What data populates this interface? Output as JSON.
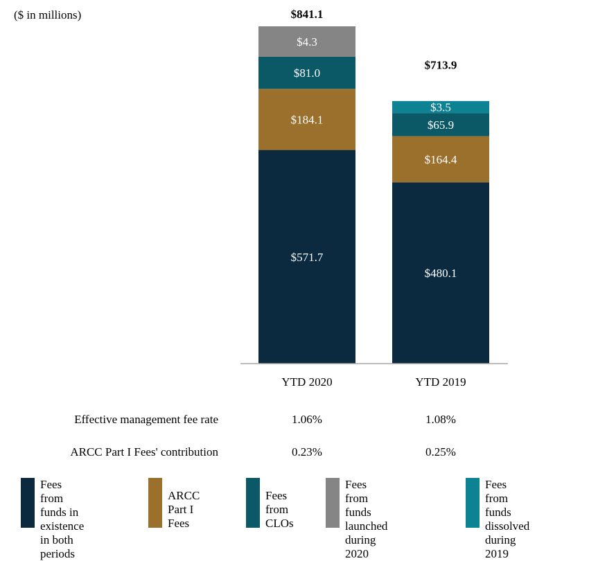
{
  "chart_data": {
    "type": "bar",
    "stacked": true,
    "unit_note": "($ in millions)",
    "categories": [
      "YTD 2020",
      "YTD 2019"
    ],
    "totals": [
      "$841.1",
      "$713.9"
    ],
    "total_values": [
      841.1,
      713.9
    ],
    "series": [
      {
        "name": "Fees from funds in existence in both periods",
        "legend_text": "Fees from funds in\nexistence in both\nperiods",
        "color": "#0b2a40",
        "values": [
          571.7,
          480.1
        ],
        "labels": [
          "$571.7",
          "$480.1"
        ]
      },
      {
        "name": "ARCC Part I Fees",
        "legend_text": "ARCC Part I\nFees",
        "color": "#9b702c",
        "values": [
          184.1,
          164.4
        ],
        "labels": [
          "$184.1",
          "$164.4"
        ]
      },
      {
        "name": "Fees from CLOs",
        "legend_text": "Fees from\nCLOs",
        "color": "#0b5866",
        "values": [
          81.0,
          65.9
        ],
        "labels": [
          "$81.0",
          "$65.9"
        ]
      },
      {
        "name": "Fees from funds launched during 2020",
        "legend_text": "Fees from funds\nlaunched during\n2020",
        "color": "#858585",
        "values": [
          4.3,
          0
        ],
        "labels": [
          "$4.3",
          ""
        ]
      },
      {
        "name": "Fees from funds dissolved during 2019",
        "legend_text": "Fees from funds\ndissolved during\n2019",
        "color": "#0c8293",
        "values": [
          0,
          3.5
        ],
        "labels": [
          "",
          "$3.5"
        ]
      }
    ],
    "segment_display_fraction": [
      [
        0.6333,
        0.1813,
        0.0952,
        0.0902,
        0
      ],
      [
        0.6333,
        0.1612,
        0.0809,
        0,
        0.0418
      ]
    ],
    "ylim": [
      0,
      841.1
    ],
    "grid": false,
    "legend_position": "bottom"
  },
  "metrics": [
    {
      "label": "Effective management fee rate",
      "values": [
        "1.06%",
        "1.08%"
      ]
    },
    {
      "label": "ARCC Part I Fees' contribution",
      "values": [
        "0.23%",
        "0.25%"
      ]
    }
  ]
}
